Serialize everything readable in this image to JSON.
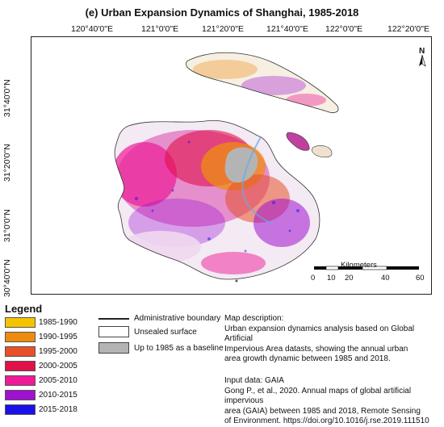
{
  "title": "(e)  Urban Expansion Dynamics of Shanghai, 1985-2018",
  "longitude_labels": [
    "120°40'0\"E",
    "121°0'0\"E",
    "121°20'0\"E",
    "121°40'0\"E",
    "122°0'0\"E",
    "122°20'0\"E"
  ],
  "latitude_labels": [
    "31°40'0\"N",
    "31°20'0\"N",
    "31°0'0\"N",
    "30°40'0\"N"
  ],
  "north_arrow": "N",
  "scale_bar": {
    "title": "Kilometers",
    "ticks": [
      "0",
      "10",
      "20",
      "40",
      "60"
    ]
  },
  "legend": {
    "title": "Legend",
    "periods": [
      {
        "label": "1985-1990",
        "color": "#f5c400"
      },
      {
        "label": "1990-1995",
        "color": "#ee8c10"
      },
      {
        "label": "1995-2000",
        "color": "#e8502a"
      },
      {
        "label": "2000-2005",
        "color": "#e0104a"
      },
      {
        "label": "2005-2010",
        "color": "#ee1a96"
      },
      {
        "label": "2010-2015",
        "color": "#a010d0"
      },
      {
        "label": "2015-2018",
        "color": "#1a10e8"
      }
    ],
    "symbols": {
      "boundary": "Administrative boundary",
      "unsealed": "Unsealed surface",
      "baseline": "Up to 1985 as a baseline",
      "baseline_color": "#b4b4b4"
    }
  },
  "description": {
    "heading": "Map description:",
    "lines": [
      "Urban expansion dynamics analysis based on Global Artificial",
      "Impervious Area datasts, showing the annual urban",
      "area growth dynamic between 1985 and 2018."
    ]
  },
  "input": {
    "heading": "Input data: GAIA",
    "lines": [
      "Gong P., et al., 2020. Annual maps of global artificial impervious",
      "area (GAIA) between 1985 and 2018, Remote Sensing",
      "of Environment. https://doi.org/10.1016/j.rse.2019.111510"
    ]
  }
}
